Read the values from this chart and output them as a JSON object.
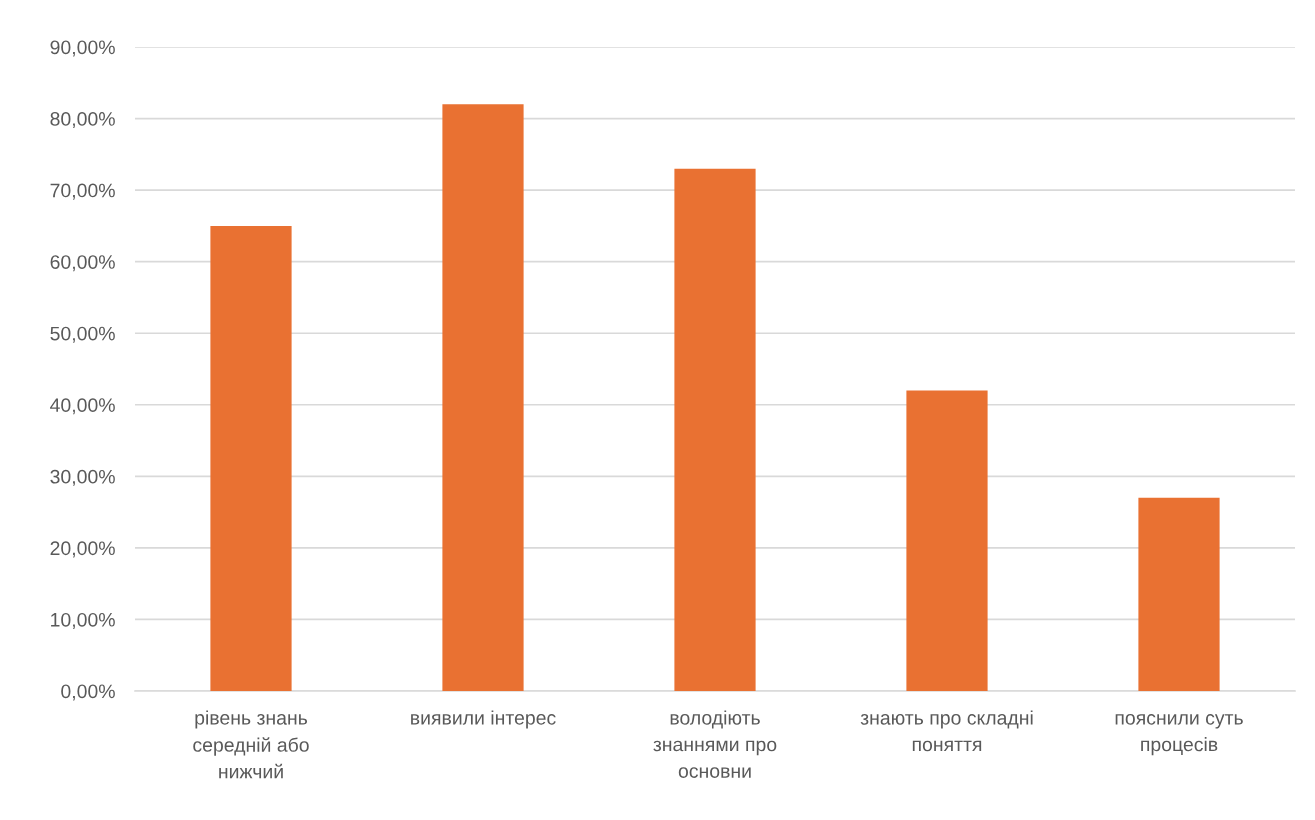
{
  "chart_data": {
    "type": "bar",
    "categories": [
      "рівень знань\nсередній або\nнижчий",
      "виявили інтерес",
      "володіють\nзнаннями про\nосновни",
      "знають про складні\nпоняття",
      "пояснили суть\nпроцесів"
    ],
    "values": [
      65,
      82,
      73,
      42,
      27
    ],
    "color": "#e97132",
    "ylim": [
      0,
      90
    ],
    "yticks": [
      {
        "value": 0,
        "label": "0,00%"
      },
      {
        "value": 10,
        "label": "10,00%"
      },
      {
        "value": 20,
        "label": "20,00%"
      },
      {
        "value": 30,
        "label": "30,00%"
      },
      {
        "value": 40,
        "label": "40,00%"
      },
      {
        "value": 50,
        "label": "50,00%"
      },
      {
        "value": 60,
        "label": "60,00%"
      },
      {
        "value": 70,
        "label": "70,00%"
      },
      {
        "value": 80,
        "label": "80,00%"
      },
      {
        "value": 90,
        "label": "90,00%"
      }
    ],
    "grid": "y",
    "legend": false
  }
}
